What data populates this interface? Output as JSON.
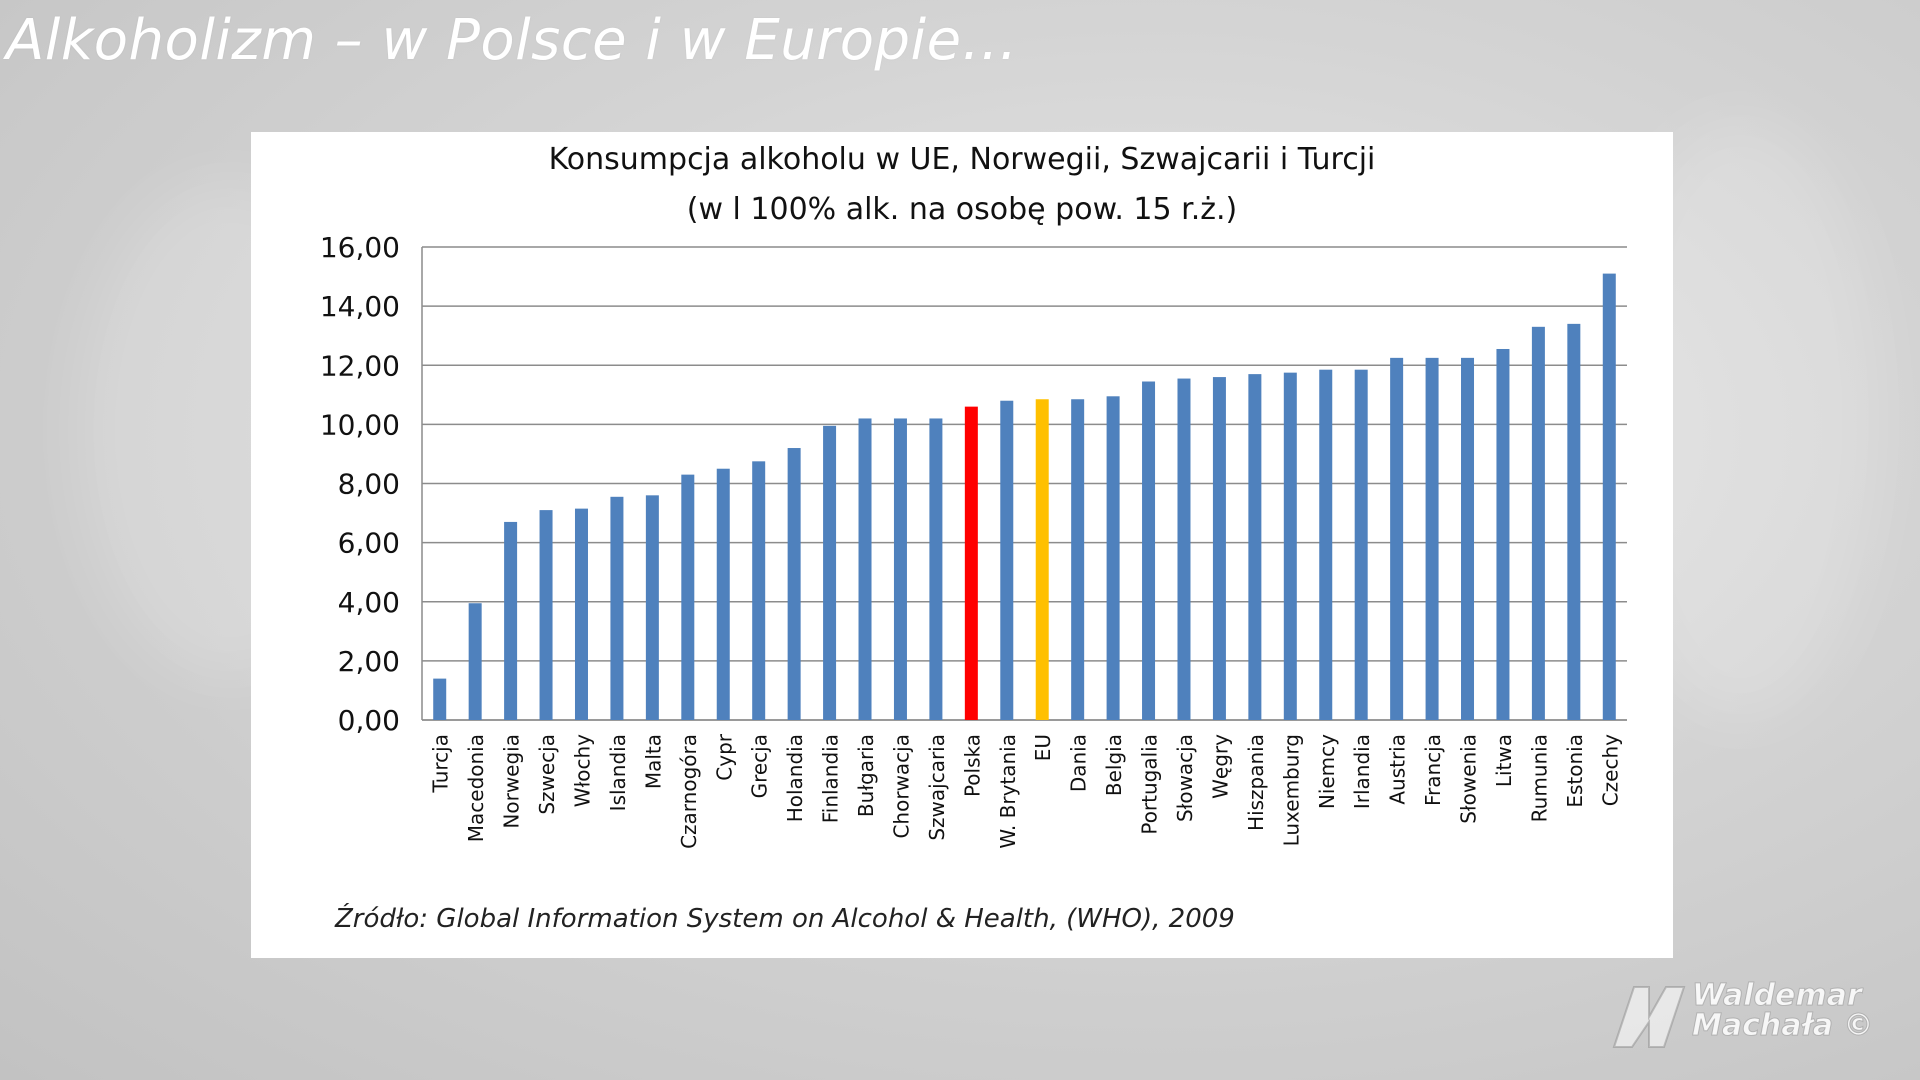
{
  "slide": {
    "title": "Alkoholizm – w Polsce i w Europie…"
  },
  "colors": {
    "bar_default": "#4f81bd",
    "bar_poland": "#ff0000",
    "bar_eu": "#ffc000",
    "gridline": "#8c8c8c"
  },
  "chart_data": {
    "type": "bar",
    "title": "Konsumpcja alkoholu w UE, Norwegii, Szwajcarii i Turcji",
    "subtitle": "(w l 100% alk. na osobę pow. 15 r.ż.)",
    "xlabel": "",
    "ylabel": "",
    "ylim": [
      0,
      16
    ],
    "yticks": [
      "0,00",
      "2,00",
      "4,00",
      "6,00",
      "8,00",
      "10,00",
      "12,00",
      "14,00",
      "16,00"
    ],
    "grid": true,
    "legend": "none",
    "categories": [
      "Turcja",
      "Macedonia",
      "Norwegia",
      "Szwecja",
      "Włochy",
      "Islandia",
      "Malta",
      "Czarnogóra",
      "Cypr",
      "Grecja",
      "Holandia",
      "Finlandia",
      "Bułgaria",
      "Chorwacja",
      "Szwajcaria",
      "Polska",
      "W. Brytania",
      "EU",
      "Dania",
      "Belgia",
      "Portugalia",
      "Słowacja",
      "Węgry",
      "Hiszpania",
      "Luxemburg",
      "Niemcy",
      "Irlandia",
      "Austria",
      "Francja",
      "Słowenia",
      "Litwa",
      "Rumunia",
      "Estonia",
      "Czechy"
    ],
    "values": [
      1.4,
      3.95,
      6.7,
      7.1,
      7.15,
      7.55,
      7.6,
      8.3,
      8.5,
      8.75,
      9.2,
      9.95,
      10.2,
      10.2,
      10.2,
      10.6,
      10.8,
      10.85,
      10.85,
      10.95,
      11.45,
      11.55,
      11.6,
      11.7,
      11.75,
      11.85,
      11.85,
      12.25,
      12.25,
      12.25,
      12.55,
      13.3,
      13.4,
      15.1
    ],
    "highlight": {
      "Polska": "bar_poland",
      "EU": "bar_eu"
    },
    "source": "Źródło: Global Information System on Alcohol & Health, (WHO), 2009"
  },
  "watermark": {
    "line1": "Waldemar",
    "line2": "Machała ©"
  }
}
